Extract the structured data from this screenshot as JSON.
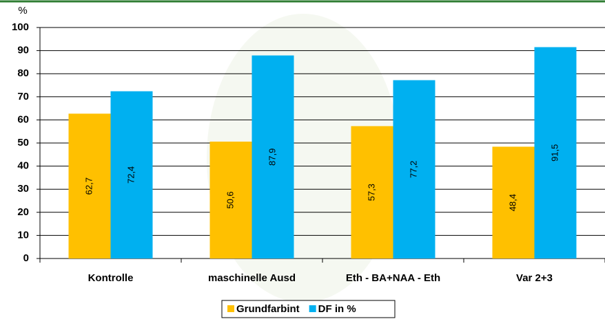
{
  "chart_data": {
    "type": "bar",
    "ylabel": "%",
    "categories": [
      "Kontrolle",
      "maschinelle Ausd",
      "Eth - BA+NAA - Eth",
      "Var 2+3"
    ],
    "series": [
      {
        "name": "Grundfarbint",
        "color": "#ffc000",
        "values": [
          62.7,
          50.6,
          57.3,
          48.4
        ],
        "value_labels": [
          "62,7",
          "50,6",
          "57,3",
          "48,4"
        ]
      },
      {
        "name": "DF in %",
        "color": "#00b0f0",
        "values": [
          72.4,
          87.9,
          77.2,
          91.5
        ],
        "value_labels": [
          "72,4",
          "87,9",
          "77,2",
          "91,5"
        ]
      }
    ],
    "ylim": [
      0,
      100
    ],
    "yticks": [
      0,
      10,
      20,
      30,
      40,
      50,
      60,
      70,
      80,
      90,
      100
    ],
    "grid": true,
    "legend": "bottom"
  }
}
